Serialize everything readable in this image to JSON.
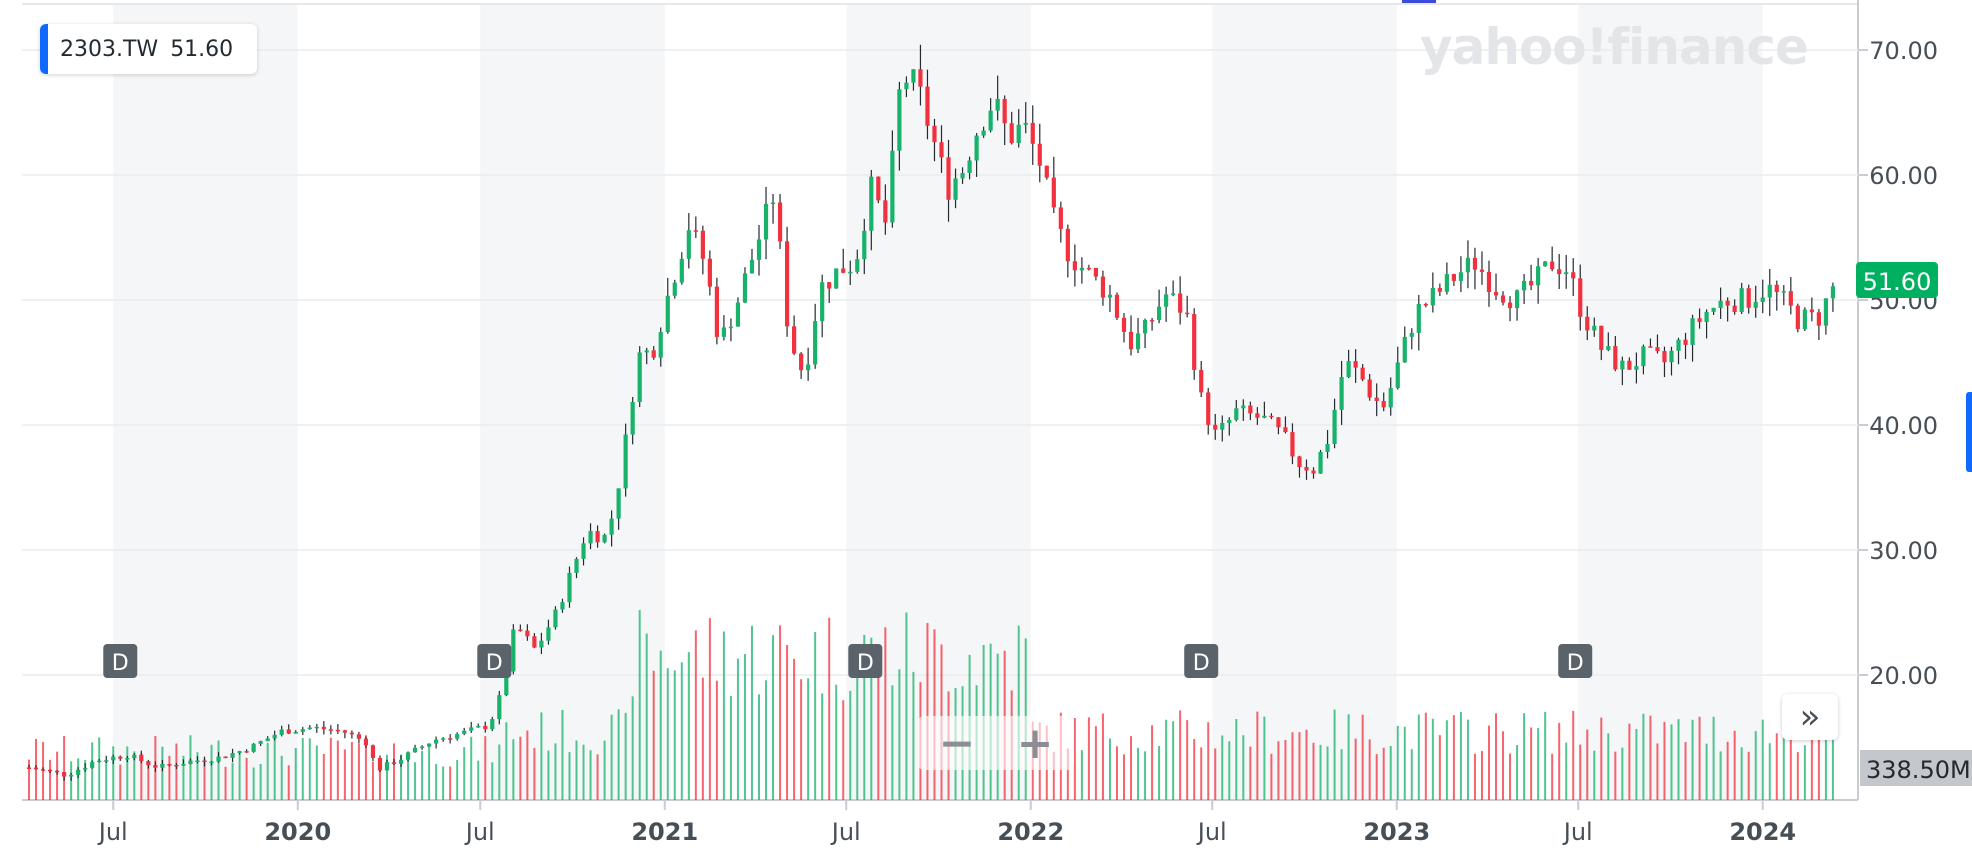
{
  "ticker": {
    "symbol": "2303.TW",
    "price": "51.60"
  },
  "logo_text": "yahoo!finance",
  "current_price_label": "51.60",
  "current_volume_label": "338.50M",
  "zoom_out_label": "−",
  "zoom_in_label": "+",
  "expand_label": "»",
  "colors": {
    "up": "#18b26b",
    "down": "#f2313f",
    "badge_green": "#00b061",
    "accent": "#0f69ff"
  },
  "chart_data": {
    "type": "candlestick",
    "title": "",
    "ylim": [
      15,
      73
    ],
    "y_ticks": [
      "20.00",
      "30.00",
      "40.00",
      "50.00",
      "60.00",
      "70.00"
    ],
    "x_ticks": [
      {
        "label": "Jul",
        "date": "2019-07-01"
      },
      {
        "label": "2020",
        "date": "2020-01-01"
      },
      {
        "label": "Jul",
        "date": "2020-07-01"
      },
      {
        "label": "2021",
        "date": "2021-01-01"
      },
      {
        "label": "Jul",
        "date": "2021-07-01"
      },
      {
        "label": "2022",
        "date": "2022-01-01"
      },
      {
        "label": "Jul",
        "date": "2022-07-01"
      },
      {
        "label": "2023",
        "date": "2023-01-01"
      },
      {
        "label": "Jul",
        "date": "2023-07-01"
      },
      {
        "label": "2024",
        "date": "2024-01-01"
      }
    ],
    "dividend_markers": [
      {
        "label": "D",
        "date": "2019-07-08"
      },
      {
        "label": "D",
        "date": "2020-07-15"
      },
      {
        "label": "D",
        "date": "2021-07-20"
      },
      {
        "label": "D",
        "date": "2022-06-20"
      },
      {
        "label": "D",
        "date": "2023-06-28"
      }
    ],
    "price_path": [
      [
        "2019-04-08",
        12.6
      ],
      [
        "2019-05-15",
        12.0
      ],
      [
        "2019-06-15",
        13.2
      ],
      [
        "2019-07-15",
        13.6
      ],
      [
        "2019-08-15",
        12.6
      ],
      [
        "2019-09-15",
        13.1
      ],
      [
        "2019-10-15",
        13.4
      ],
      [
        "2019-11-15",
        14.2
      ],
      [
        "2019-12-15",
        15.5
      ],
      [
        "2020-01-15",
        15.8
      ],
      [
        "2020-02-15",
        15.5
      ],
      [
        "2020-03-10",
        14.6
      ],
      [
        "2020-03-20",
        12.4
      ],
      [
        "2020-04-15",
        13.4
      ],
      [
        "2020-05-15",
        14.8
      ],
      [
        "2020-06-15",
        15.4
      ],
      [
        "2020-07-10",
        16.0
      ],
      [
        "2020-07-22",
        18.5
      ],
      [
        "2020-08-05",
        24.0
      ],
      [
        "2020-08-25",
        22.0
      ],
      [
        "2020-09-15",
        25.0
      ],
      [
        "2020-10-15",
        31.5
      ],
      [
        "2020-11-05",
        31.0
      ],
      [
        "2020-11-20",
        37.0
      ],
      [
        "2020-12-05",
        45.5
      ],
      [
        "2020-12-20",
        46.0
      ],
      [
        "2021-01-10",
        52.0
      ],
      [
        "2021-01-25",
        56.0
      ],
      [
        "2021-02-10",
        53.0
      ],
      [
        "2021-02-25",
        46.5
      ],
      [
        "2021-03-15",
        50.0
      ],
      [
        "2021-04-05",
        55.0
      ],
      [
        "2021-04-20",
        58.5
      ],
      [
        "2021-05-05",
        47.0
      ],
      [
        "2021-05-20",
        44.0
      ],
      [
        "2021-06-05",
        51.0
      ],
      [
        "2021-06-25",
        52.5
      ],
      [
        "2021-07-10",
        53.0
      ],
      [
        "2021-07-25",
        59.0
      ],
      [
        "2021-08-10",
        56.0
      ],
      [
        "2021-08-25",
        68.0
      ],
      [
        "2021-09-10",
        67.0
      ],
      [
        "2021-09-25",
        63.0
      ],
      [
        "2021-10-10",
        59.0
      ],
      [
        "2021-10-25",
        60.5
      ],
      [
        "2021-11-10",
        64.0
      ],
      [
        "2021-11-25",
        66.0
      ],
      [
        "2021-12-10",
        63.0
      ],
      [
        "2021-12-25",
        64.0
      ],
      [
        "2022-01-10",
        61.0
      ],
      [
        "2022-01-25",
        56.0
      ],
      [
        "2022-02-10",
        53.5
      ],
      [
        "2022-03-01",
        52.0
      ],
      [
        "2022-03-20",
        50.5
      ],
      [
        "2022-04-10",
        46.5
      ],
      [
        "2022-04-25",
        47.5
      ],
      [
        "2022-05-15",
        50.5
      ],
      [
        "2022-06-05",
        49.0
      ],
      [
        "2022-06-20",
        42.0
      ],
      [
        "2022-07-05",
        39.0
      ],
      [
        "2022-07-25",
        41.0
      ],
      [
        "2022-08-20",
        40.5
      ],
      [
        "2022-09-10",
        39.0
      ],
      [
        "2022-09-25",
        37.0
      ],
      [
        "2022-10-10",
        36.5
      ],
      [
        "2022-10-25",
        39.0
      ],
      [
        "2022-11-10",
        45.0
      ],
      [
        "2022-11-25",
        44.0
      ],
      [
        "2022-12-10",
        42.0
      ],
      [
        "2022-12-20",
        41.5
      ],
      [
        "2023-01-05",
        45.5
      ],
      [
        "2023-01-20",
        49.0
      ],
      [
        "2023-02-10",
        50.5
      ],
      [
        "2023-03-01",
        52.0
      ],
      [
        "2023-03-20",
        53.0
      ],
      [
        "2023-04-10",
        51.0
      ],
      [
        "2023-05-01",
        50.0
      ],
      [
        "2023-05-20",
        51.5
      ],
      [
        "2023-06-05",
        53.0
      ],
      [
        "2023-06-20",
        52.5
      ],
      [
        "2023-07-05",
        49.0
      ],
      [
        "2023-07-25",
        46.0
      ],
      [
        "2023-08-15",
        44.5
      ],
      [
        "2023-09-05",
        45.5
      ],
      [
        "2023-09-25",
        45.0
      ],
      [
        "2023-10-15",
        47.0
      ],
      [
        "2023-11-05",
        49.0
      ],
      [
        "2023-11-25",
        50.0
      ],
      [
        "2023-12-15",
        50.0
      ],
      [
        "2024-01-05",
        51.0
      ],
      [
        "2024-01-20",
        50.0
      ],
      [
        "2024-02-05",
        48.5
      ],
      [
        "2024-02-25",
        48.5
      ],
      [
        "2024-03-15",
        51.6
      ]
    ],
    "volume_ylim_max": 1000,
    "volume_current": 338.5
  }
}
